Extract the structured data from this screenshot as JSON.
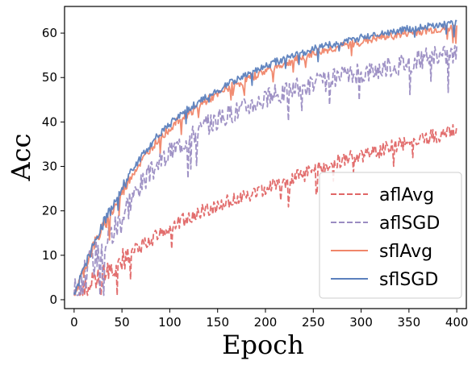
{
  "chart_data": {
    "type": "line",
    "xlabel": "Epoch",
    "ylabel": "Acc",
    "xlim": [
      -10,
      410
    ],
    "ylim": [
      -2,
      66
    ],
    "xticks": [
      "0",
      "50",
      "100",
      "150",
      "200",
      "250",
      "300",
      "350",
      "400"
    ],
    "yticks": [
      "0",
      "10",
      "20",
      "30",
      "40",
      "50",
      "60"
    ],
    "grid": false,
    "legend_position": "bottom-right",
    "x": [
      0,
      10,
      20,
      30,
      40,
      50,
      60,
      70,
      80,
      90,
      100,
      110,
      120,
      130,
      140,
      150,
      160,
      170,
      180,
      190,
      200,
      210,
      220,
      230,
      240,
      250,
      260,
      270,
      280,
      290,
      300,
      310,
      320,
      330,
      340,
      350,
      360,
      370,
      380,
      390,
      400
    ],
    "series": [
      {
        "name": "aflAvg",
        "color": "#e06666",
        "dash": "dashed",
        "values": [
          1,
          2.5,
          4,
          5.5,
          7,
          9,
          10.5,
          12,
          13.5,
          15,
          16,
          17.5,
          18.5,
          19.5,
          20.5,
          21,
          22,
          22.5,
          23.5,
          24,
          25,
          26,
          26.5,
          27.5,
          28,
          29,
          30,
          30.5,
          31.5,
          32,
          32.5,
          33,
          33.5,
          34.5,
          35,
          35.5,
          36,
          36.5,
          37,
          37.5,
          38
        ]
      },
      {
        "name": "aflSGD",
        "color": "#9a8cc2",
        "dash": "dashed",
        "values": [
          1,
          5,
          9,
          13,
          15,
          19,
          23,
          26,
          28.5,
          31,
          33,
          35,
          36.5,
          38,
          39.5,
          40.5,
          41.5,
          42.5,
          43.5,
          44.5,
          45,
          46,
          46.5,
          47.5,
          48,
          48.5,
          49,
          49.5,
          50,
          50.5,
          51,
          51.5,
          52,
          52.5,
          53,
          53.5,
          54,
          54.5,
          54.8,
          55,
          55.5
        ]
      },
      {
        "name": "sflAvg",
        "color": "#f0866a",
        "dash": "solid",
        "values": [
          1,
          6.5,
          12,
          16,
          20,
          24,
          28,
          31,
          34,
          36.5,
          38.5,
          40.5,
          42,
          43.5,
          45,
          46,
          47.5,
          48.5,
          49.5,
          50.5,
          51.5,
          52.5,
          53,
          54,
          54.5,
          55.5,
          56,
          56.5,
          57,
          57.5,
          58,
          58.5,
          59,
          59.3,
          59.6,
          60,
          60.3,
          60.6,
          60.8,
          61,
          61.2
        ]
      },
      {
        "name": "sflSGD",
        "color": "#5b80bd",
        "dash": "solid",
        "values": [
          1,
          7,
          12.5,
          17,
          21,
          25,
          29,
          32,
          35,
          37.5,
          39.5,
          41.5,
          43,
          44.5,
          46,
          47,
          48.5,
          49.5,
          50.5,
          51.5,
          52.5,
          53.5,
          54,
          55,
          55.5,
          56.5,
          57,
          57.5,
          58,
          58.5,
          59,
          59.5,
          60,
          60.3,
          60.6,
          61,
          61.3,
          61.6,
          61.8,
          62,
          62.2
        ]
      }
    ]
  }
}
